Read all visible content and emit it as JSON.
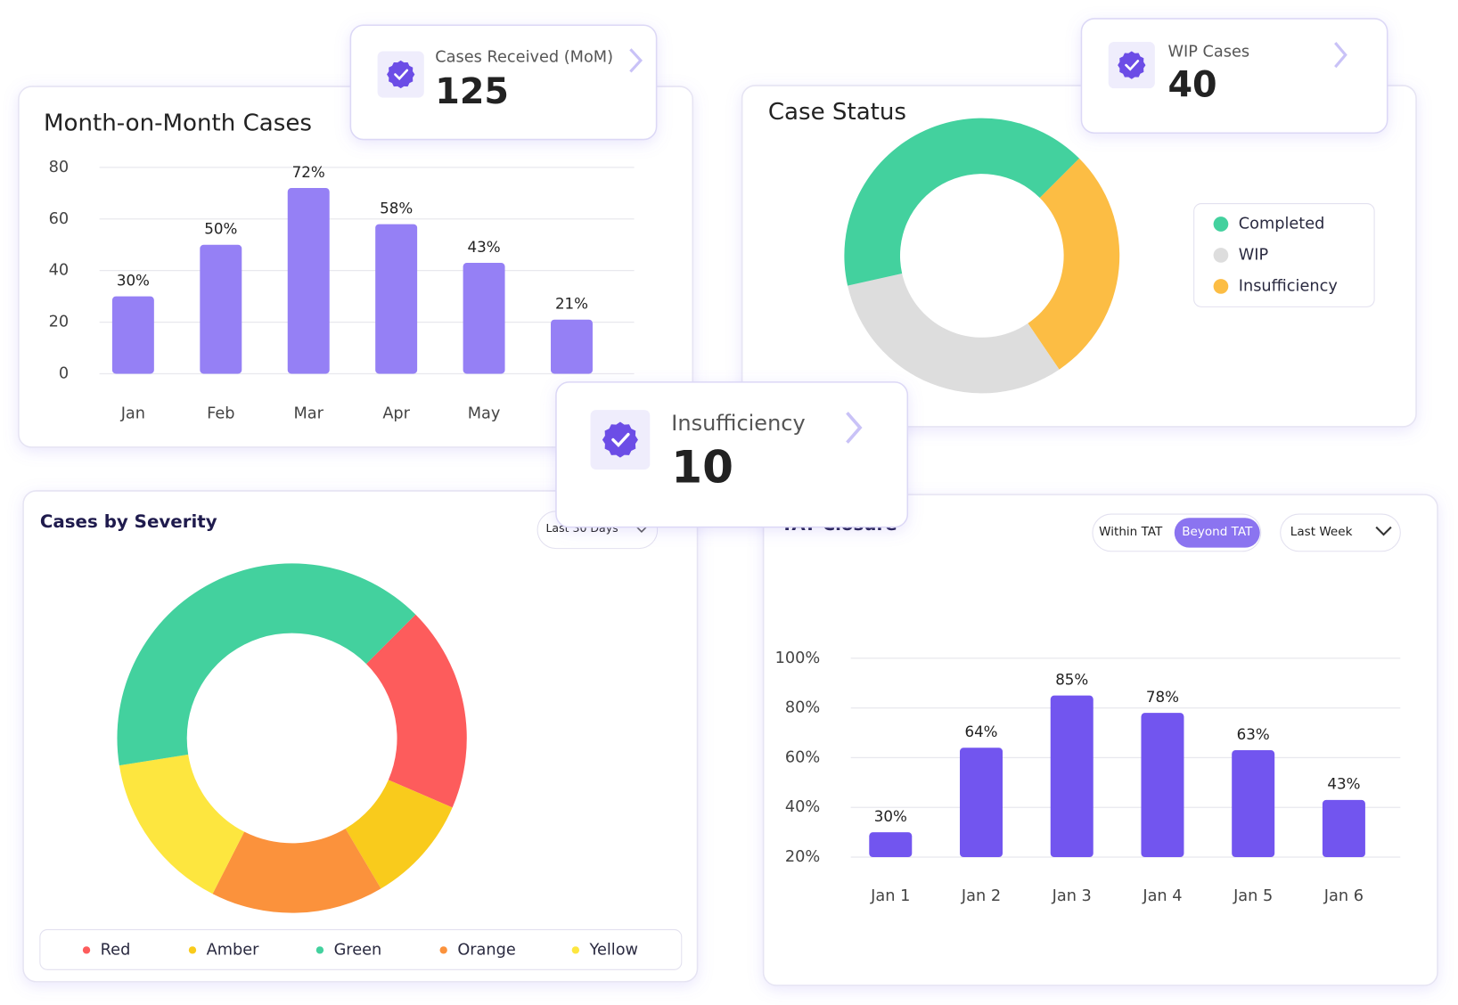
{
  "cards": [
    {
      "title": "Cases Received (MoM)",
      "value": 125
    },
    {
      "title": "WIP Cases",
      "value": 40
    },
    {
      "title": "Insufficiency",
      "value": 10
    }
  ],
  "chart_data": [
    {
      "type": "bar",
      "title": "Month-on-Month Cases",
      "categories": [
        "Jan",
        "Feb",
        "Mar",
        "Apr",
        "May",
        null
      ],
      "values": [
        30,
        50,
        72,
        58,
        43,
        21
      ],
      "value_labels": [
        "30%",
        "50%",
        "72%",
        "58%",
        "43%",
        "21%"
      ],
      "color": "#9580f5",
      "ylim": [
        0,
        80
      ],
      "yticks": [
        0,
        20,
        40,
        60,
        80
      ],
      "grid": true
    },
    {
      "type": "donut",
      "title": "Case Status",
      "categories": [
        "Completed",
        "WIP",
        "Insufficiency"
      ],
      "values": [
        41,
        31,
        28
      ],
      "colors": [
        "#43d19e",
        "#dddddd",
        "#fcbd44"
      ],
      "legend": "right"
    },
    {
      "type": "donut",
      "title": "Cases by Severity",
      "period": "Last 30 Days",
      "categories": [
        "Red",
        "Amber",
        "Green",
        "Orange",
        "Yellow"
      ],
      "values": [
        19,
        10,
        40,
        16,
        15
      ],
      "colors": [
        "#fd5c5c",
        "#f9cb1c",
        "#43d19e",
        "#fb923c",
        "#fde63f"
      ],
      "legend": "bottom"
    },
    {
      "type": "bar",
      "title": "TAT Closure",
      "filters": [
        "Within TAT",
        "Beyond TAT"
      ],
      "period": "Last Week",
      "categories": [
        "Jan 1",
        "Jan 2",
        "Jan 3",
        "Jan 4",
        "Jan 5",
        "Jan 6"
      ],
      "values": [
        30,
        64,
        85,
        78,
        63,
        43
      ],
      "value_labels": [
        "30%",
        "64%",
        "85%",
        "78%",
        "63%",
        "43%"
      ],
      "color": "#7255ef",
      "ylim": [
        20,
        100
      ],
      "yticks": [
        {
          "value": 20,
          "label": "20%"
        },
        {
          "value": 40,
          "label": "40%"
        },
        {
          "value": 60,
          "label": "60%"
        },
        {
          "value": 80,
          "label": "80%"
        },
        {
          "value": 100,
          "label": "100%"
        }
      ],
      "grid": true
    }
  ]
}
